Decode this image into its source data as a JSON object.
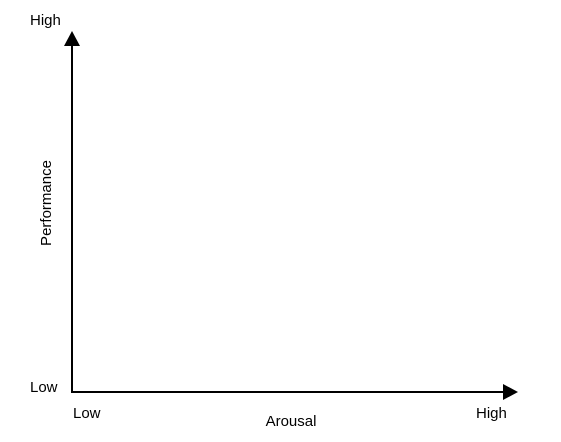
{
  "diagram": {
    "y_axis": {
      "label": "Performance",
      "high_label": "High",
      "low_label": "Low"
    },
    "x_axis": {
      "label": "Arousal",
      "low_label": "Low",
      "high_label": "High"
    },
    "colors": {
      "axis": "#000000",
      "text": "#000000",
      "background": "#ffffff"
    }
  }
}
